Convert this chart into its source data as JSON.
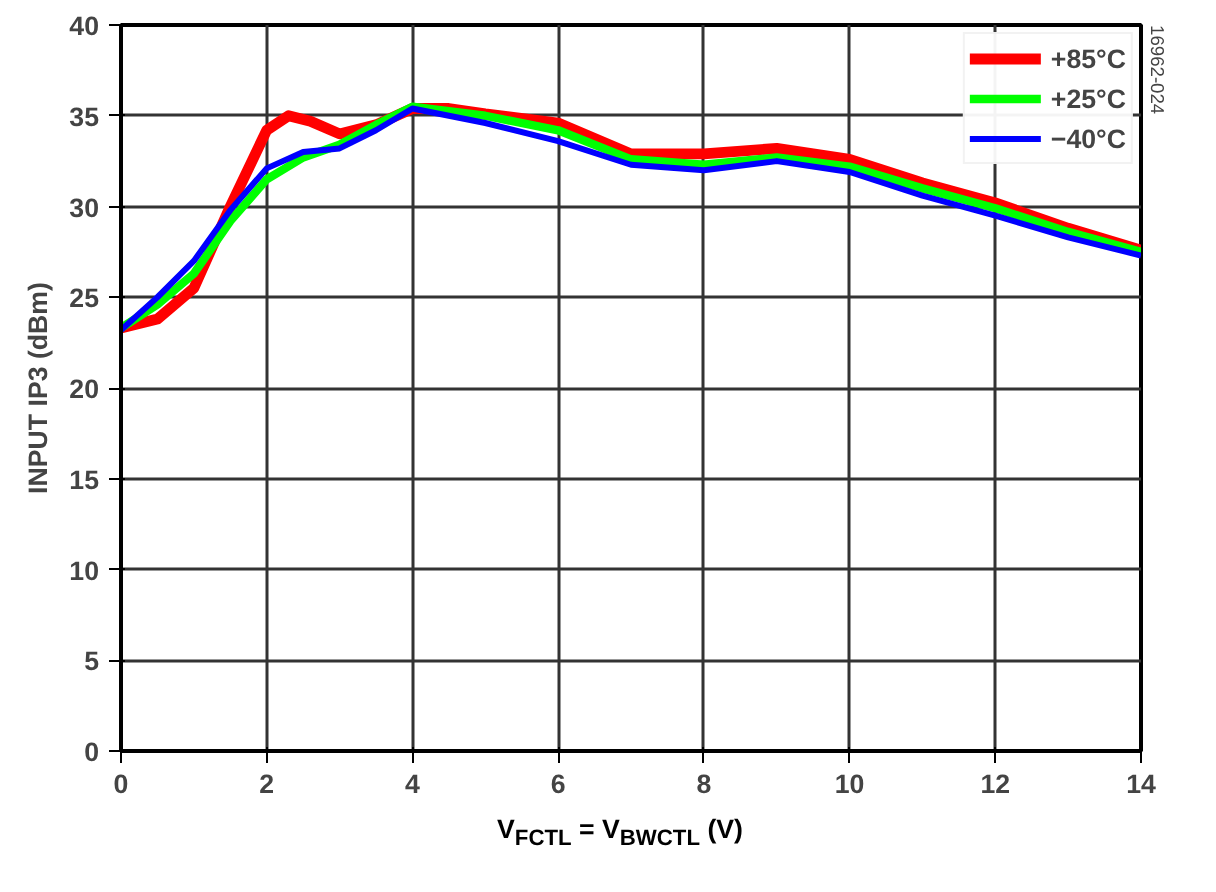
{
  "chart_data": {
    "type": "line",
    "xlabel": "V$_{FCTL}$ = V$_{BWCTL}$ (V)",
    "ylabel": "INPUT IP3 (dBm)",
    "annotations": [
      "16962-024"
    ],
    "xlim": [
      0,
      14
    ],
    "xticks": [
      0,
      2,
      4,
      6,
      8,
      10,
      12,
      14
    ],
    "ylim": [
      0,
      40
    ],
    "yticks": [
      0,
      5,
      10,
      15,
      20,
      25,
      30,
      35,
      40
    ],
    "grid": true,
    "legend": "top right",
    "line_style": "solid",
    "marker": "none",
    "series": [
      {
        "name": "+85°C",
        "color": "#ff0000",
        "x": [
          0,
          0.5,
          1,
          1.5,
          2,
          2.3,
          2.6,
          3,
          3.5,
          4,
          4.5,
          5,
          6,
          7,
          8,
          9,
          10,
          11,
          12,
          13,
          14
        ],
        "values": [
          23.3,
          23.8,
          25.5,
          30,
          34.2,
          35,
          34.7,
          34,
          34.5,
          35.4,
          35.4,
          35.1,
          34.6,
          32.9,
          32.9,
          33.2,
          32.6,
          31.3,
          30.2,
          28.8,
          27.6
        ]
      },
      {
        "name": "+25°C",
        "color": "#00ff00",
        "x": [
          0,
          0.5,
          1,
          1.5,
          2,
          2.5,
          3,
          3.5,
          4,
          5,
          6,
          7,
          8,
          9,
          10,
          11,
          12,
          13,
          14
        ],
        "values": [
          23.3,
          24.6,
          26.3,
          29.2,
          31.5,
          32.7,
          33.4,
          34.5,
          35.5,
          35.0,
          34.2,
          32.6,
          32.3,
          32.7,
          32.2,
          31,
          29.9,
          28.6,
          27.5
        ]
      },
      {
        "name": "−40°C",
        "color": "#0000ff",
        "x": [
          0,
          0.5,
          1,
          1.5,
          2,
          2.5,
          3,
          3.5,
          4,
          5,
          6,
          7,
          8,
          9,
          10,
          11,
          12,
          13,
          14
        ],
        "values": [
          23.2,
          25,
          27,
          29.8,
          32.1,
          33,
          33.2,
          34.2,
          35.4,
          34.6,
          33.6,
          32.3,
          32,
          32.5,
          31.9,
          30.6,
          29.5,
          28.3,
          27.3
        ]
      }
    ]
  }
}
